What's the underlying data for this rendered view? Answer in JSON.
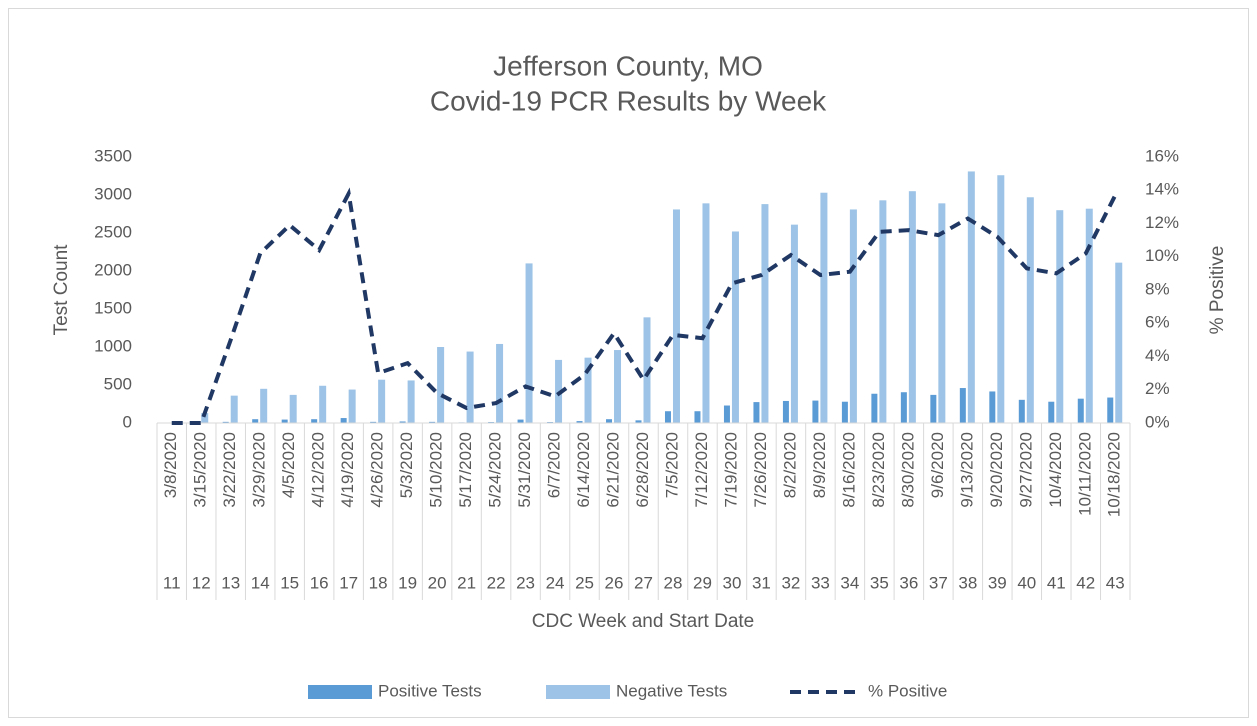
{
  "chart_data": {
    "type": "bar",
    "title": [
      "Jefferson County, MO",
      "Covid-19 PCR Results by Week"
    ],
    "x_label": "CDC Week and Start Date",
    "y_label": "Test Count",
    "y2_label": "% Positive",
    "categories": [
      "3/8/2020",
      "3/15/2020",
      "3/22/2020",
      "3/29/2020",
      "4/5/2020",
      "4/12/2020",
      "4/19/2020",
      "4/26/2020",
      "5/3/2020",
      "5/10/2020",
      "5/17/2020",
      "5/24/2020",
      "5/31/2020",
      "6/7/2020",
      "6/14/2020",
      "6/21/2020",
      "6/28/2020",
      "7/5/2020",
      "7/12/2020",
      "7/19/2020",
      "7/26/2020",
      "8/2/2020",
      "8/9/2020",
      "8/16/2020",
      "8/23/2020",
      "8/30/2020",
      "9/6/2020",
      "9/13/2020",
      "9/20/2020",
      "9/27/2020",
      "10/4/2020",
      "10/11/2020",
      "10/18/2020"
    ],
    "weeks": [
      11,
      12,
      13,
      14,
      15,
      16,
      17,
      18,
      19,
      20,
      21,
      22,
      23,
      24,
      25,
      26,
      27,
      28,
      29,
      30,
      31,
      32,
      33,
      34,
      35,
      36,
      37,
      38,
      39,
      40,
      41,
      42,
      43
    ],
    "series": [
      {
        "name": "Positive Tests",
        "color": "#5b9bd5",
        "type": "bar",
        "values": [
          0,
          0,
          15,
          50,
          45,
          50,
          65,
          15,
          20,
          15,
          8,
          12,
          45,
          12,
          25,
          50,
          35,
          155,
          155,
          230,
          275,
          290,
          295,
          280,
          385,
          405,
          370,
          460,
          415,
          305,
          280,
          320,
          335
        ]
      },
      {
        "name": "Negative Tests",
        "color": "#9dc3e6",
        "type": "bar",
        "values": [
          5,
          130,
          360,
          450,
          370,
          490,
          440,
          570,
          560,
          1000,
          940,
          1040,
          2100,
          830,
          860,
          960,
          1390,
          2810,
          2890,
          2520,
          2880,
          2610,
          3030,
          2810,
          2930,
          3050,
          2890,
          3310,
          3260,
          2970,
          2800,
          2820,
          2110
        ]
      },
      {
        "name": "% Positive",
        "color": "#203864",
        "type": "line",
        "dashed": true,
        "axis": "y2",
        "values": [
          0,
          0,
          5.0,
          10.2,
          11.9,
          10.4,
          13.8,
          3.0,
          3.6,
          1.8,
          0.9,
          1.2,
          2.2,
          1.6,
          2.9,
          5.4,
          2.6,
          5.3,
          5.1,
          8.4,
          8.9,
          10.1,
          8.9,
          9.1,
          11.5,
          11.6,
          11.3,
          12.3,
          11.2,
          9.3,
          9.0,
          10.2,
          13.7
        ]
      }
    ],
    "ylim": [
      0,
      3500
    ],
    "yticks": [
      0,
      500,
      1000,
      1500,
      2000,
      2500,
      3000,
      3500
    ],
    "y2lim": [
      0,
      16
    ],
    "y2ticks": [
      {
        "value": 0,
        "label": "0%"
      },
      {
        "value": 2,
        "label": "2%"
      },
      {
        "value": 4,
        "label": "4%"
      },
      {
        "value": 6,
        "label": "6%"
      },
      {
        "value": 8,
        "label": "8%"
      },
      {
        "value": 10,
        "label": "10%"
      },
      {
        "value": 12,
        "label": "12%"
      },
      {
        "value": 14,
        "label": "14%"
      },
      {
        "value": 16,
        "label": "16%"
      }
    ],
    "grid": false,
    "legend": "bottom"
  }
}
